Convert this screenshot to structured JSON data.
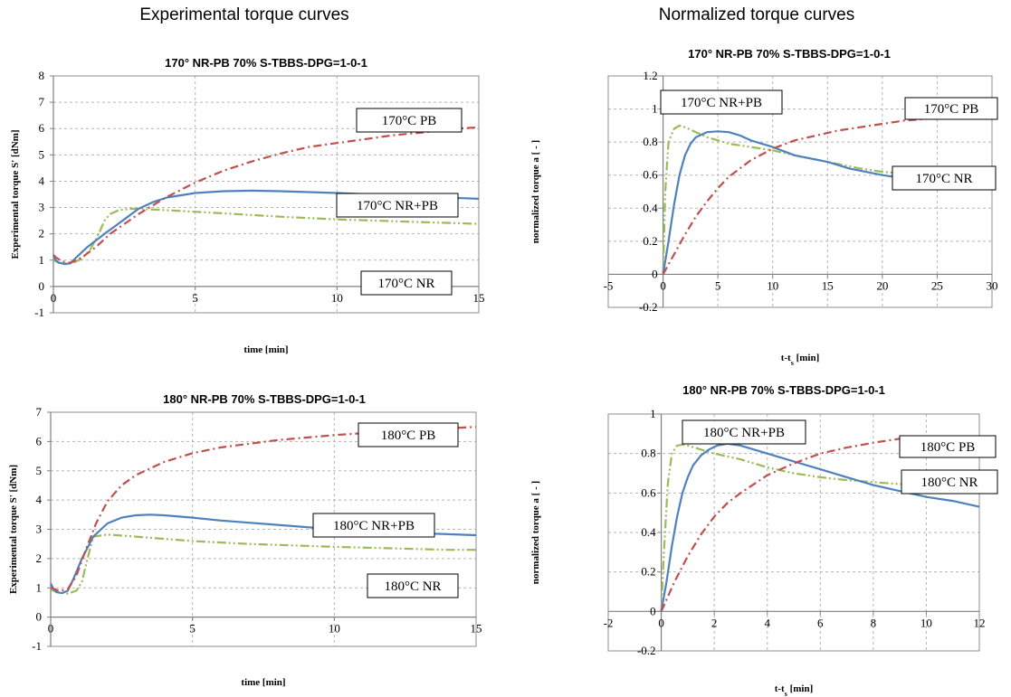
{
  "headers": {
    "left": "Experimental torque curves",
    "right": "Normalized torque curves"
  },
  "chart_data": [
    {
      "type": "line",
      "title": "170° NR-PB 70% S-TBBS-DPG=1-0-1",
      "xlabel": "time [min]",
      "ylabel": "Experimental torque S' [dNm]",
      "xlim": [
        0,
        15
      ],
      "ylim": [
        -1,
        8
      ],
      "xticks": [
        "0",
        "5",
        "10",
        "15"
      ],
      "yticks": [
        "-1",
        "0",
        "1",
        "2",
        "3",
        "4",
        "5",
        "6",
        "7",
        "8"
      ],
      "grid": true,
      "series": [
        {
          "name": "170°C NR",
          "color": "#9bbb59",
          "dash": "long-dash-dot-dot",
          "x": [
            0,
            0.1,
            0.2,
            0.4,
            0.7,
            1.0,
            1.3,
            1.6,
            1.8,
            2.0,
            2.3,
            2.7,
            3.0,
            4,
            6,
            8,
            10,
            12,
            15
          ],
          "y": [
            1.0,
            0.95,
            0.9,
            0.88,
            0.9,
            1.05,
            1.4,
            2.0,
            2.5,
            2.75,
            2.9,
            2.95,
            2.95,
            2.9,
            2.78,
            2.65,
            2.55,
            2.48,
            2.38
          ]
        },
        {
          "name": "170°C NR+PB",
          "color": "#4f81bd",
          "dash": "solid",
          "x": [
            0,
            0.08,
            0.2,
            0.4,
            0.6,
            0.8,
            1.2,
            1.8,
            2.5,
            3.0,
            3.5,
            4.0,
            5,
            6,
            7,
            8,
            10,
            12,
            15
          ],
          "y": [
            1.2,
            1.0,
            0.9,
            0.85,
            0.88,
            1.1,
            1.5,
            2.0,
            2.55,
            2.95,
            3.2,
            3.38,
            3.55,
            3.62,
            3.64,
            3.62,
            3.55,
            3.46,
            3.33
          ]
        },
        {
          "name": "170°C PB",
          "color": "#c0504d",
          "dash": "dash-dot",
          "x": [
            0,
            0.1,
            0.3,
            0.6,
            1.0,
            1.5,
            2.0,
            3.0,
            4.0,
            5.0,
            6,
            7,
            8,
            9,
            10,
            11,
            12,
            13,
            14,
            15
          ],
          "y": [
            1.2,
            1.1,
            0.95,
            0.9,
            1.1,
            1.5,
            2.0,
            2.75,
            3.4,
            3.95,
            4.4,
            4.75,
            5.05,
            5.3,
            5.45,
            5.6,
            5.75,
            5.85,
            5.98,
            6.05
          ]
        }
      ],
      "annotations": [
        "170°C PB",
        "170°C NR+PB",
        "170°C NR"
      ]
    },
    {
      "type": "line",
      "title": "170° NR-PB 70% S-TBBS-DPG=1-0-1",
      "xlabel": "t-ts [min]",
      "ylabel": "normalized torque a  [ - ]",
      "xlim": [
        -5,
        30
      ],
      "ylim": [
        -0.2,
        1.2
      ],
      "xticks": [
        "-5",
        "0",
        "5",
        "10",
        "15",
        "20",
        "25",
        "30"
      ],
      "yticks": [
        "-0.2",
        "0",
        "0.2",
        "0.4",
        "0.6",
        "0.8",
        "1",
        "1.2"
      ],
      "grid": true,
      "series": [
        {
          "name": "170°C NR",
          "color": "#9bbb59",
          "dash": "long-dash-dot-dot",
          "x": [
            0,
            0.2,
            0.5,
            1.0,
            1.5,
            2.0,
            3,
            4,
            5,
            6,
            8,
            10,
            12,
            15,
            18,
            20,
            22,
            25,
            28
          ],
          "y": [
            0,
            0.5,
            0.8,
            0.88,
            0.9,
            0.89,
            0.86,
            0.83,
            0.81,
            0.79,
            0.77,
            0.75,
            0.72,
            0.68,
            0.64,
            0.62,
            0.61,
            0.59,
            0.575
          ]
        },
        {
          "name": "170°C NR+PB",
          "color": "#4f81bd",
          "dash": "solid",
          "x": [
            0,
            0.5,
            1.0,
            1.5,
            2.0,
            2.5,
            3,
            4,
            5,
            6,
            7,
            8,
            10,
            12,
            15,
            17,
            20,
            22,
            25,
            28
          ],
          "y": [
            0,
            0.2,
            0.42,
            0.6,
            0.72,
            0.79,
            0.83,
            0.86,
            0.865,
            0.86,
            0.84,
            0.81,
            0.77,
            0.72,
            0.68,
            0.64,
            0.6,
            0.58,
            0.56,
            0.525
          ]
        },
        {
          "name": "170°C PB",
          "color": "#c0504d",
          "dash": "dash-dot",
          "x": [
            0,
            1,
            2,
            3,
            4,
            5,
            6,
            8,
            10,
            12,
            14,
            16,
            18,
            20,
            22,
            24,
            26,
            28
          ],
          "y": [
            0,
            0.12,
            0.24,
            0.35,
            0.44,
            0.52,
            0.59,
            0.69,
            0.76,
            0.81,
            0.84,
            0.87,
            0.89,
            0.91,
            0.93,
            0.94,
            0.955,
            0.965
          ]
        }
      ],
      "annotations": [
        "170°C PB",
        "170°C NR+PB",
        "170°C NR"
      ]
    },
    {
      "type": "line",
      "title": "180° NR-PB 70% S-TBBS-DPG=1-0-1",
      "xlabel": "time [min]",
      "ylabel": "Experimental torque S' [dNm]",
      "xlim": [
        0,
        15
      ],
      "ylim": [
        -1,
        7
      ],
      "xticks": [
        "0",
        "5",
        "10",
        "15"
      ],
      "yticks": [
        "-1",
        "0",
        "1",
        "2",
        "3",
        "4",
        "5",
        "6",
        "7"
      ],
      "grid": true,
      "series": [
        {
          "name": "180°C NR",
          "color": "#9bbb59",
          "dash": "long-dash-dot-dot",
          "x": [
            0,
            0.1,
            0.3,
            0.6,
            0.9,
            1.1,
            1.3,
            1.5,
            2,
            3,
            5,
            7,
            10,
            12,
            14,
            15
          ],
          "y": [
            0.95,
            0.9,
            0.85,
            0.8,
            0.9,
            1.2,
            2.0,
            2.75,
            2.82,
            2.75,
            2.6,
            2.5,
            2.4,
            2.35,
            2.3,
            2.3
          ]
        },
        {
          "name": "180°C NR+PB",
          "color": "#4f81bd",
          "dash": "solid",
          "x": [
            0,
            0.08,
            0.2,
            0.4,
            0.6,
            0.8,
            1.1,
            1.5,
            2.0,
            2.5,
            3.0,
            3.5,
            4,
            5,
            6,
            8,
            10,
            12,
            15
          ],
          "y": [
            1.15,
            1.0,
            0.85,
            0.82,
            0.9,
            1.3,
            2.0,
            2.75,
            3.2,
            3.4,
            3.48,
            3.5,
            3.48,
            3.4,
            3.3,
            3.15,
            3.0,
            2.9,
            2.8
          ]
        },
        {
          "name": "180°C PB",
          "color": "#c0504d",
          "dash": "dash-dot",
          "x": [
            0,
            0.3,
            0.6,
            0.9,
            1.2,
            1.6,
            2.0,
            2.5,
            3,
            4,
            5,
            6,
            8,
            10,
            12,
            14,
            15
          ],
          "y": [
            1.0,
            0.9,
            0.95,
            1.4,
            2.2,
            3.2,
            3.95,
            4.5,
            4.85,
            5.3,
            5.6,
            5.8,
            6.05,
            6.22,
            6.35,
            6.45,
            6.5
          ]
        }
      ],
      "annotations": [
        "180°C PB",
        "180°C NR+PB",
        "180°C NR"
      ]
    },
    {
      "type": "line",
      "title": "180° NR-PB 70% S-TBBS-DPG=1-0-1",
      "xlabel": "t-ts [min]",
      "ylabel": "normalized torque a  [ - ]",
      "xlim": [
        -2,
        12
      ],
      "ylim": [
        -0.2,
        1
      ],
      "xticks": [
        "-2",
        "0",
        "2",
        "4",
        "6",
        "8",
        "10",
        "12"
      ],
      "yticks": [
        "-0.2",
        "0",
        "0.2",
        "0.4",
        "0.6",
        "0.8",
        "1"
      ],
      "grid": true,
      "series": [
        {
          "name": "180°C NR",
          "color": "#9bbb59",
          "dash": "long-dash-dot-dot",
          "x": [
            0,
            0.1,
            0.25,
            0.4,
            0.6,
            0.8,
            1.0,
            1.5,
            2,
            3,
            4,
            5,
            6,
            7,
            8,
            9,
            10,
            11,
            12
          ],
          "y": [
            0,
            0.3,
            0.65,
            0.8,
            0.84,
            0.845,
            0.84,
            0.82,
            0.8,
            0.77,
            0.73,
            0.7,
            0.68,
            0.665,
            0.655,
            0.645,
            0.64,
            0.63,
            0.625
          ]
        },
        {
          "name": "180°C NR+PB",
          "color": "#4f81bd",
          "dash": "solid",
          "x": [
            0,
            0.2,
            0.4,
            0.6,
            0.8,
            1.0,
            1.2,
            1.5,
            1.8,
            2.1,
            2.5,
            3,
            3.5,
            4,
            5,
            6,
            7,
            8,
            9,
            10,
            11,
            12
          ],
          "y": [
            0,
            0.15,
            0.33,
            0.48,
            0.6,
            0.68,
            0.74,
            0.79,
            0.82,
            0.84,
            0.85,
            0.84,
            0.82,
            0.8,
            0.76,
            0.72,
            0.68,
            0.64,
            0.61,
            0.58,
            0.56,
            0.53
          ]
        },
        {
          "name": "180°C PB",
          "color": "#c0504d",
          "dash": "dash-dot",
          "x": [
            0,
            0.5,
            1,
            1.5,
            2,
            2.5,
            3,
            4,
            5,
            6,
            7,
            8,
            9,
            10
          ],
          "y": [
            0,
            0.15,
            0.28,
            0.39,
            0.48,
            0.55,
            0.6,
            0.69,
            0.75,
            0.8,
            0.83,
            0.855,
            0.875,
            0.885
          ]
        }
      ],
      "annotations": [
        "180°C PB",
        "180°C NR+PB",
        "180°C NR"
      ]
    }
  ]
}
